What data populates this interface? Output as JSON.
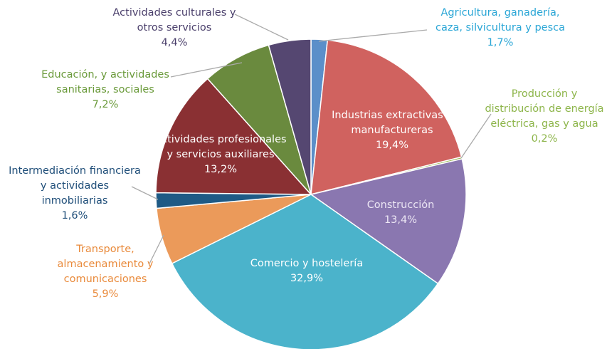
{
  "chart_data": {
    "type": "pie",
    "categories": [
      "Agricultura, ganadería, caza, silvicultura y pesca",
      "Industrias extractivas y manufactureras",
      "Producción y distribución de energía eléctrica, gas y agua",
      "Construcción",
      "Comercio y hostelería",
      "Transporte, almacenamiento y comunicaciones",
      "Intermediación financiera y actividades inmobiliarias",
      "Actividades profesionales y servicios auxiliares",
      "Educación, y actividades sanitarias, sociales",
      "Actividades culturales y otros servicios"
    ],
    "values": [
      1.7,
      19.4,
      0.2,
      13.4,
      32.9,
      5.9,
      1.6,
      13.2,
      7.2,
      4.4
    ],
    "value_labels": [
      "1,7%",
      "19,4%",
      "0,2%",
      "13,4%",
      "32,9%",
      "5,9%",
      "1,6%",
      "13,2%",
      "7,2%",
      "4,4%"
    ],
    "colors": [
      "#5b8fc9",
      "#d0625f",
      "#9bbb59",
      "#8a77b0",
      "#4bb3cb",
      "#eb9a5a",
      "#1f5a85",
      "#8a3033",
      "#6a8a3e",
      "#554771"
    ]
  }
}
